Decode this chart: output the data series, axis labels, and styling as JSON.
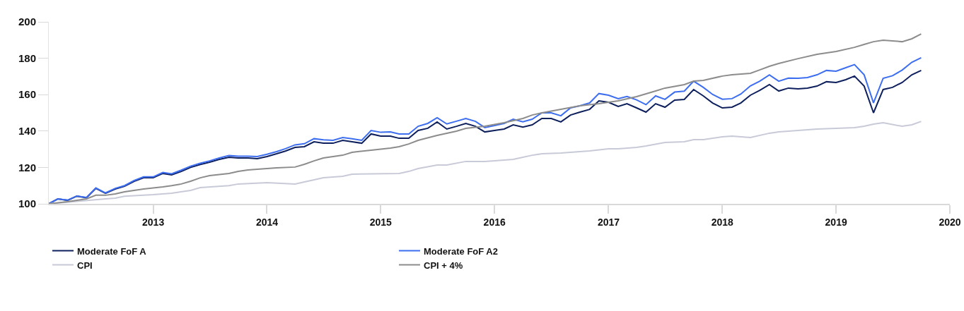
{
  "chart_data": {
    "type": "line",
    "legend": "bottom",
    "marker": "none",
    "line_style": "solid",
    "x": [
      "2012-02",
      "2012-03",
      "2012-04",
      "2012-05",
      "2012-06",
      "2012-07",
      "2012-08",
      "2012-09",
      "2012-10",
      "2012-11",
      "2012-12",
      "2013-01",
      "2013-02",
      "2013-03",
      "2013-04",
      "2013-05",
      "2013-06",
      "2013-07",
      "2013-08",
      "2013-09",
      "2013-10",
      "2013-11",
      "2013-12",
      "2014-01",
      "2014-02",
      "2014-03",
      "2014-04",
      "2014-05",
      "2014-06",
      "2014-07",
      "2014-08",
      "2014-09",
      "2014-10",
      "2014-11",
      "2014-12",
      "2015-01",
      "2015-02",
      "2015-03",
      "2015-04",
      "2015-05",
      "2015-06",
      "2015-07",
      "2015-08",
      "2015-09",
      "2015-10",
      "2015-11",
      "2015-12",
      "2016-01",
      "2016-02",
      "2016-03",
      "2016-04",
      "2016-05",
      "2016-06",
      "2016-07",
      "2016-08",
      "2016-09",
      "2016-10",
      "2016-11",
      "2016-12",
      "2017-01",
      "2017-02",
      "2017-03",
      "2017-04",
      "2017-05",
      "2017-06",
      "2017-07",
      "2017-08",
      "2017-09",
      "2017-10",
      "2017-11",
      "2017-12",
      "2018-01",
      "2018-02",
      "2018-03",
      "2018-04",
      "2018-05",
      "2018-06",
      "2018-07",
      "2018-08",
      "2018-09",
      "2018-10",
      "2018-11",
      "2018-12",
      "2019-01",
      "2019-02",
      "2019-03",
      "2019-04",
      "2019-05",
      "2019-06",
      "2019-07",
      "2019-08",
      "2019-09",
      "2019-10"
    ],
    "xlim": [
      "2012-02",
      "2020-01"
    ],
    "xticks": [
      {
        "value": "2013-01",
        "label": "2013"
      },
      {
        "value": "2014-01",
        "label": "2014"
      },
      {
        "value": "2015-01",
        "label": "2015"
      },
      {
        "value": "2016-01",
        "label": "2016"
      },
      {
        "value": "2017-01",
        "label": "2017"
      },
      {
        "value": "2018-01",
        "label": "2018"
      },
      {
        "value": "2019-01",
        "label": "2019"
      },
      {
        "value": "2020-01",
        "label": "2020"
      }
    ],
    "ylim": [
      100,
      200
    ],
    "yticks": [
      100,
      120,
      140,
      160,
      180,
      200
    ],
    "series": [
      {
        "name": "Moderate FoF A",
        "color": "#0d1f5c",
        "values": [
          100,
          102.7,
          101.9,
          104.2,
          103.3,
          108.5,
          105.8,
          108.1,
          109.7,
          112.4,
          114.3,
          114.3,
          116.7,
          115.9,
          117.8,
          120,
          121.6,
          122.9,
          124.4,
          125.6,
          125.2,
          125.2,
          124.8,
          126,
          127.5,
          129,
          131,
          131.4,
          134.1,
          133.3,
          133.3,
          134.9,
          134.1,
          133.3,
          138.4,
          137.2,
          137.2,
          136,
          136,
          140.3,
          141.5,
          145,
          141.1,
          142.6,
          144.2,
          142.6,
          139.5,
          140.3,
          141.1,
          143.4,
          142.2,
          143.4,
          146.9,
          146.9,
          145,
          148.8,
          150.4,
          151.9,
          156.6,
          155.8,
          153.5,
          155,
          152.7,
          150.4,
          155,
          153.1,
          157,
          157.4,
          162.8,
          159.3,
          155.4,
          152.7,
          153.1,
          155.4,
          159.7,
          162.4,
          165.5,
          162,
          163.6,
          163.2,
          163.6,
          164.7,
          167.1,
          166.7,
          168.2,
          170.2,
          164.7,
          150,
          162.8,
          164,
          166.7,
          170.9,
          173.3
        ]
      },
      {
        "name": "Moderate FoF A2",
        "color": "#3d6ef0",
        "values": [
          100,
          102.7,
          102,
          104.3,
          103.5,
          108.7,
          106,
          108.5,
          110,
          112.8,
          114.8,
          114.8,
          117.2,
          116.5,
          118.5,
          120.7,
          122.3,
          123.6,
          125.2,
          126.5,
          126.2,
          126.2,
          126,
          127.2,
          128.7,
          130.3,
          132.4,
          133,
          135.8,
          135.2,
          134.9,
          136.4,
          135.8,
          134.9,
          140.3,
          139.3,
          139.5,
          138.4,
          138.4,
          142.6,
          144.2,
          147.3,
          143.9,
          145.4,
          146.9,
          145.3,
          141.9,
          143,
          144.2,
          146.5,
          145.1,
          146.5,
          150,
          150,
          148.4,
          152.7,
          153.9,
          155.4,
          160.6,
          159.7,
          157.8,
          159,
          157.1,
          154.5,
          159.3,
          157.4,
          161.4,
          161.9,
          167.4,
          164,
          160.1,
          157.5,
          157.8,
          160.3,
          164.8,
          167.4,
          170.9,
          167.4,
          169.1,
          169,
          169.4,
          170.9,
          173.3,
          172.9,
          174.8,
          176.5,
          170.9,
          155.5,
          169,
          170.4,
          173.5,
          177.8,
          180.3
        ]
      },
      {
        "name": "CPI",
        "color": "#c8cad8",
        "x": [
          "2012-02",
          "2012-08",
          "2012-09",
          "2012-10",
          "2013-01",
          "2013-03",
          "2013-05",
          "2013-06",
          "2013-09",
          "2013-10",
          "2014-01",
          "2014-04",
          "2014-05",
          "2014-06",
          "2014-07",
          "2014-09",
          "2014-10",
          "2015-03",
          "2015-04",
          "2015-05",
          "2015-07",
          "2015-08",
          "2015-10",
          "2015-12",
          "2016-02",
          "2016-03",
          "2016-04",
          "2016-05",
          "2016-06",
          "2016-08",
          "2016-10",
          "2016-11",
          "2017-01",
          "2017-02",
          "2017-04",
          "2017-05",
          "2017-07",
          "2017-09",
          "2017-10",
          "2017-11",
          "2018-01",
          "2018-02",
          "2018-04",
          "2018-06",
          "2018-07",
          "2018-09",
          "2018-11",
          "2019-01",
          "2019-03",
          "2019-04",
          "2019-05",
          "2019-06",
          "2019-08",
          "2019-09",
          "2019-10"
        ],
        "values": [
          100,
          102.7,
          103.1,
          104.2,
          105,
          105.8,
          107.4,
          108.9,
          110,
          110.9,
          111.6,
          110.9,
          112,
          113.2,
          114.3,
          115.1,
          116.3,
          116.7,
          117.8,
          119.4,
          121.3,
          121.3,
          123.3,
          123.3,
          124,
          124.4,
          125.6,
          126.7,
          127.5,
          127.9,
          128.7,
          129.1,
          130.2,
          130.2,
          131,
          131.8,
          133.7,
          134.1,
          135.3,
          135.3,
          136.8,
          137.2,
          136.4,
          138.8,
          139.5,
          140.3,
          141.1,
          141.5,
          141.9,
          142.6,
          143.8,
          144.6,
          142.6,
          143.4,
          145.3
        ]
      },
      {
        "name": "CPI + 4%",
        "color": "#8c8c8c",
        "x": [
          "2012-02",
          "2012-04",
          "2012-06",
          "2012-07",
          "2012-08",
          "2012-09",
          "2012-10",
          "2012-12",
          "2013-02",
          "2013-03",
          "2013-04",
          "2013-05",
          "2013-06",
          "2013-07",
          "2013-09",
          "2013-10",
          "2013-11",
          "2013-12",
          "2014-02",
          "2014-04",
          "2014-05",
          "2014-06",
          "2014-07",
          "2014-09",
          "2014-10",
          "2014-12",
          "2015-02",
          "2015-03",
          "2015-04",
          "2015-05",
          "2015-07",
          "2015-08",
          "2015-09",
          "2015-10",
          "2015-12",
          "2016-02",
          "2016-04",
          "2016-05",
          "2016-06",
          "2016-08",
          "2016-10",
          "2016-12",
          "2017-01",
          "2017-02",
          "2017-04",
          "2017-06",
          "2017-07",
          "2017-09",
          "2017-10",
          "2017-11",
          "2018-01",
          "2018-02",
          "2018-04",
          "2018-05",
          "2018-06",
          "2018-07",
          "2018-09",
          "2018-11",
          "2019-01",
          "2019-03",
          "2019-04",
          "2019-05",
          "2019-06",
          "2019-08",
          "2019-09",
          "2019-10"
        ],
        "values": [
          100,
          101.2,
          102.7,
          104.7,
          104.7,
          105.4,
          106.6,
          108.1,
          109.3,
          110,
          110.9,
          112.4,
          114.3,
          115.5,
          116.7,
          117.8,
          118.6,
          119,
          119.8,
          120.2,
          121.7,
          123.6,
          125.2,
          126.7,
          128.3,
          129.5,
          130.6,
          131.4,
          132.9,
          134.9,
          137.6,
          138.8,
          139.9,
          141.5,
          142.6,
          144.6,
          146.9,
          148.8,
          150,
          151.9,
          153.9,
          155,
          155.8,
          156.6,
          158.9,
          162,
          163.6,
          165.5,
          167.4,
          167.8,
          170.2,
          170.9,
          171.7,
          173.6,
          175.6,
          177.1,
          179.8,
          182.2,
          183.7,
          186,
          187.6,
          189.1,
          189.9,
          189.1,
          190.7,
          193.4
        ]
      }
    ]
  }
}
